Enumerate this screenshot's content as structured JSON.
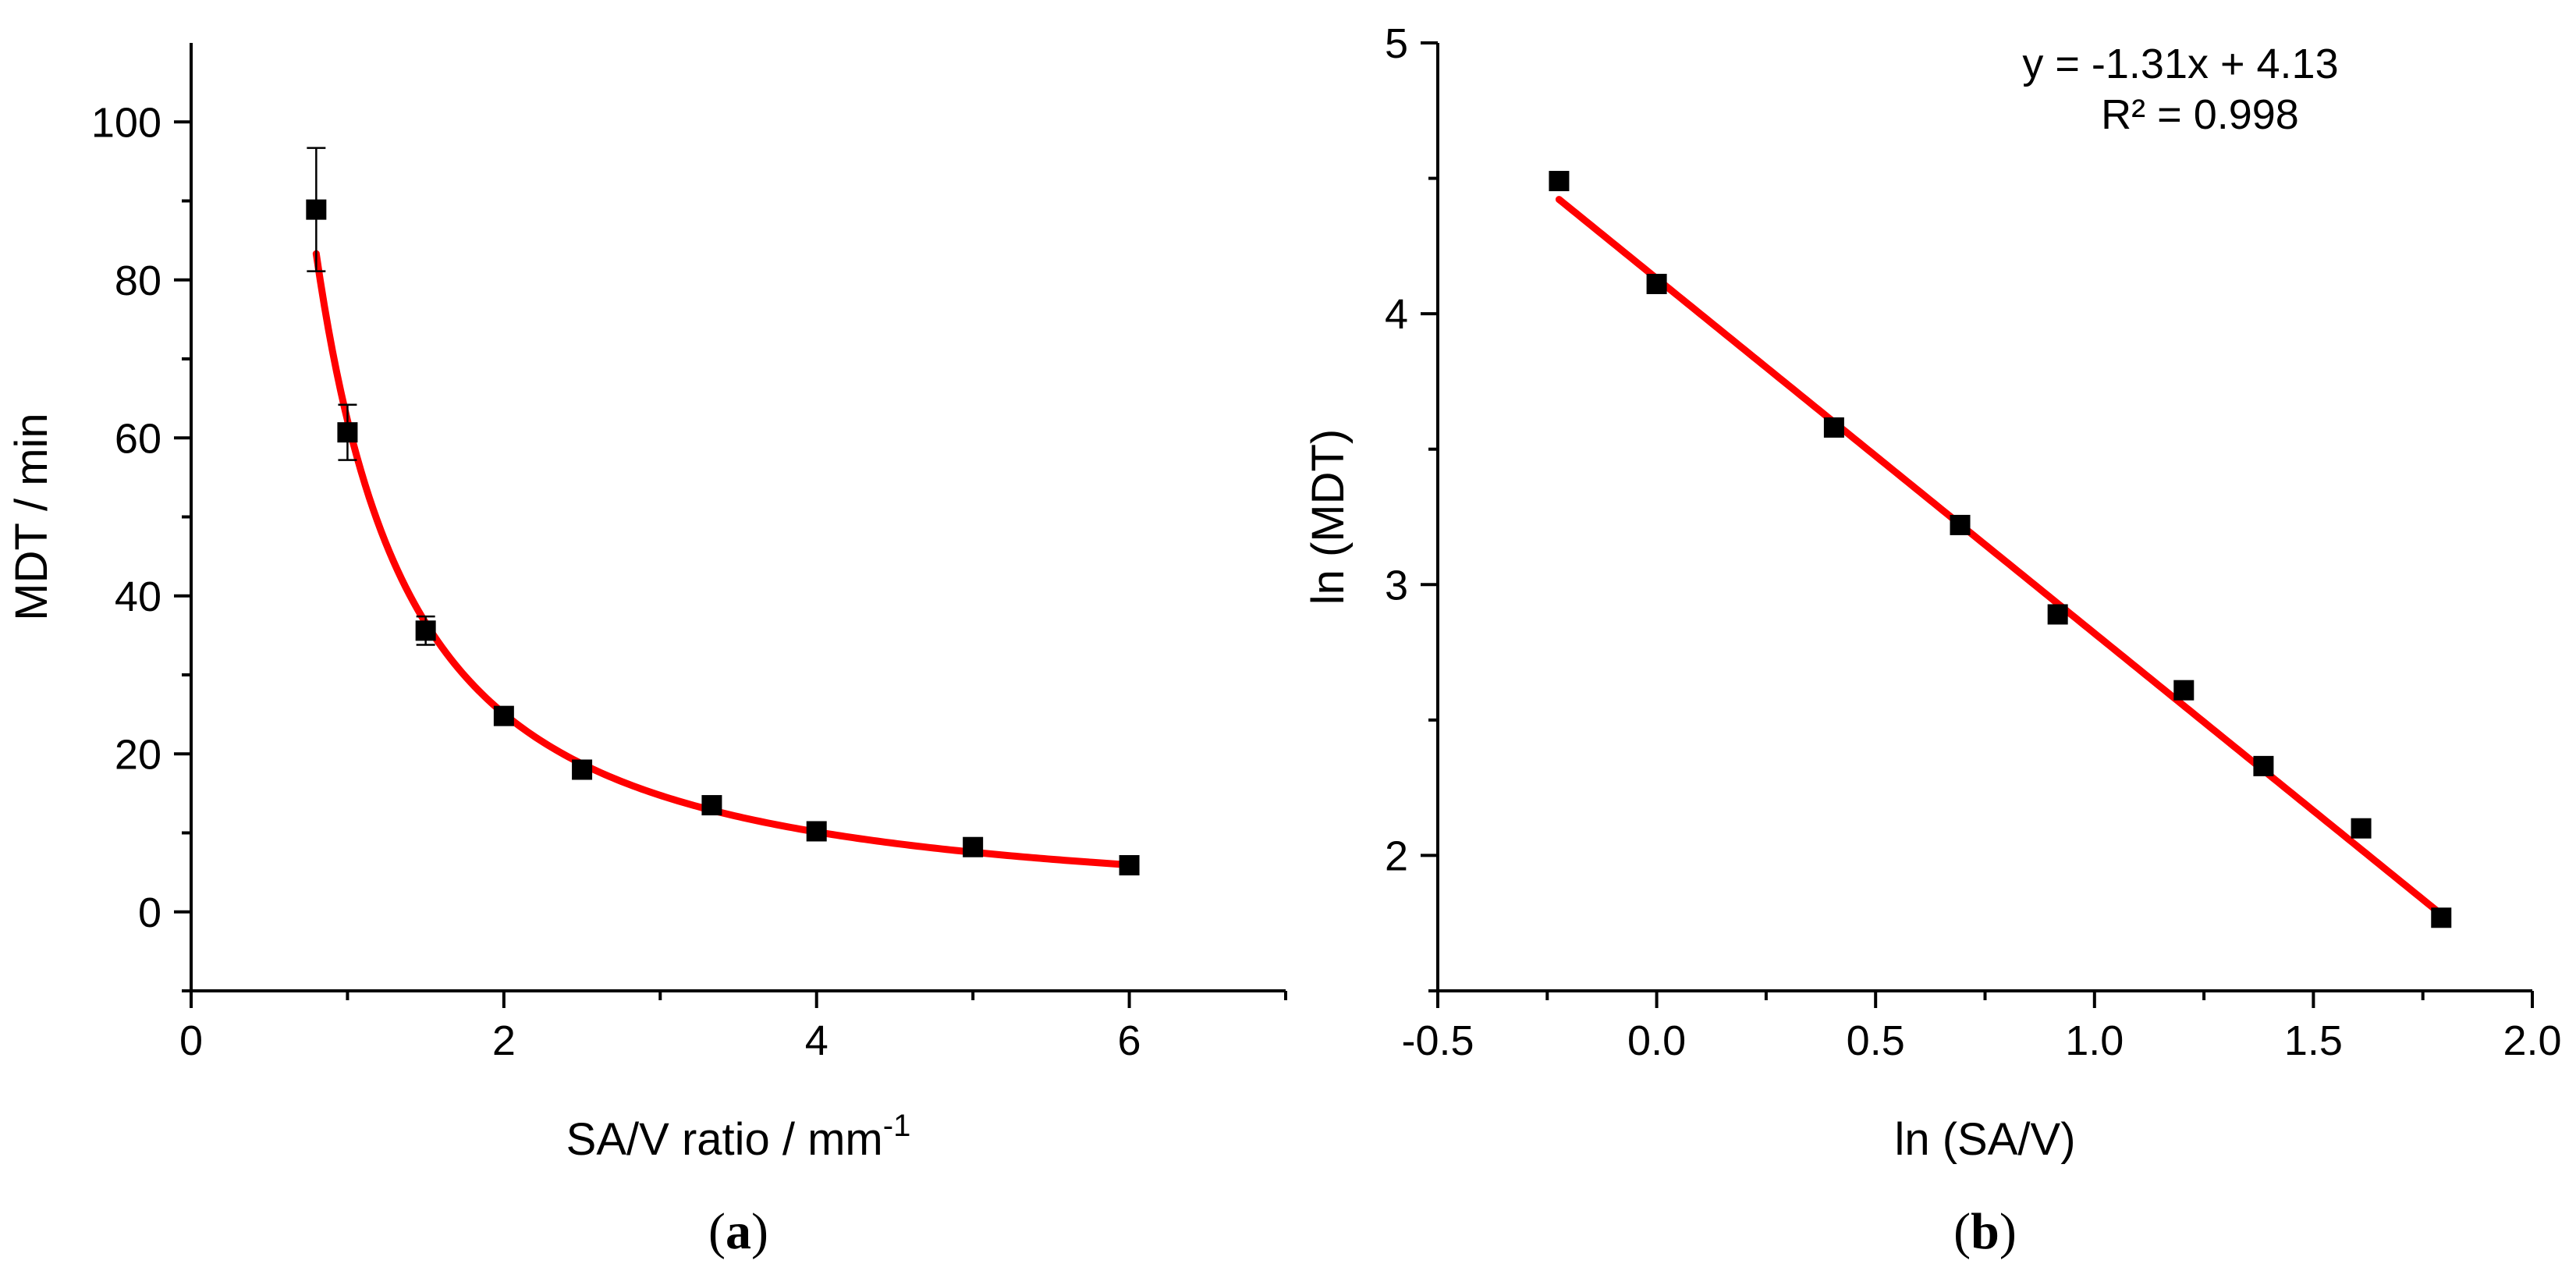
{
  "chart_data": [
    {
      "type": "scatter",
      "panel_label": "a",
      "xlabel": "SA/V ratio / mm",
      "xlabel_sup": "-1",
      "ylabel": "MDT / min",
      "xlim": [
        0,
        7
      ],
      "ylim": [
        -10,
        110
      ],
      "x_ticks": [
        0,
        2,
        4,
        6
      ],
      "y_ticks": [
        0,
        20,
        40,
        60,
        80,
        100
      ],
      "series": [
        {
          "name": "MDT",
          "x": [
            0.8,
            1.0,
            1.5,
            2.0,
            2.5,
            3.33,
            4.0,
            5.0,
            6.0
          ],
          "y": [
            88.9,
            60.7,
            35.6,
            24.8,
            18.0,
            13.5,
            10.2,
            8.2,
            5.9
          ],
          "error": [
            7.8,
            3.5,
            1.8,
            0.7,
            0.7,
            0.5,
            0.4,
            1.0,
            0.4
          ]
        }
      ],
      "fit": {
        "type": "power",
        "a": 62.2,
        "b": -1.31,
        "x_range": [
          0.8,
          6.0
        ],
        "color": "#ff0000"
      }
    },
    {
      "type": "scatter",
      "panel_label": "b",
      "xlabel": "ln (SA/V)",
      "ylabel": "ln (MDT)",
      "xlim": [
        -0.5,
        2.0
      ],
      "ylim": [
        1.5,
        5
      ],
      "x_ticks": [
        -0.5,
        0.0,
        0.5,
        1.0,
        1.5,
        2.0
      ],
      "y_ticks": [
        2,
        3,
        4,
        5
      ],
      "equation": "y = -1.31x + 4.13",
      "r_squared": "R² = 0.998",
      "series": [
        {
          "name": "ln(MDT)",
          "x": [
            -0.223,
            0.0,
            0.405,
            0.693,
            0.916,
            1.204,
            1.386,
            1.609,
            1.792
          ],
          "y": [
            4.49,
            4.11,
            3.58,
            3.22,
            2.89,
            2.61,
            2.33,
            2.1,
            1.77
          ]
        }
      ],
      "fit": {
        "type": "linear",
        "slope": -1.31,
        "intercept": 4.13,
        "x_range": [
          -0.223,
          1.792
        ],
        "color": "#ff0000"
      }
    }
  ]
}
